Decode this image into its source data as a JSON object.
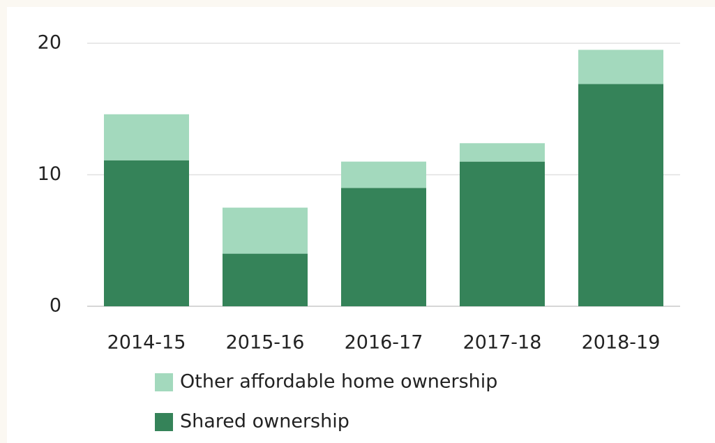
{
  "chart_data": {
    "type": "stacked-bar",
    "categories": [
      "2014-15",
      "2015-16",
      "2016-17",
      "2017-18",
      "2018-19"
    ],
    "series": [
      {
        "name": "Shared ownership",
        "color": "#358359",
        "values": [
          11.1,
          4.0,
          9.0,
          11.0,
          16.9
        ]
      },
      {
        "name": "Other affordable home ownership",
        "color": "#a3d9bd",
        "values": [
          3.5,
          3.5,
          2.0,
          1.4,
          2.6
        ]
      }
    ],
    "ylim": [
      0,
      20
    ],
    "yticks": [
      0,
      10,
      20
    ],
    "grid": true
  }
}
